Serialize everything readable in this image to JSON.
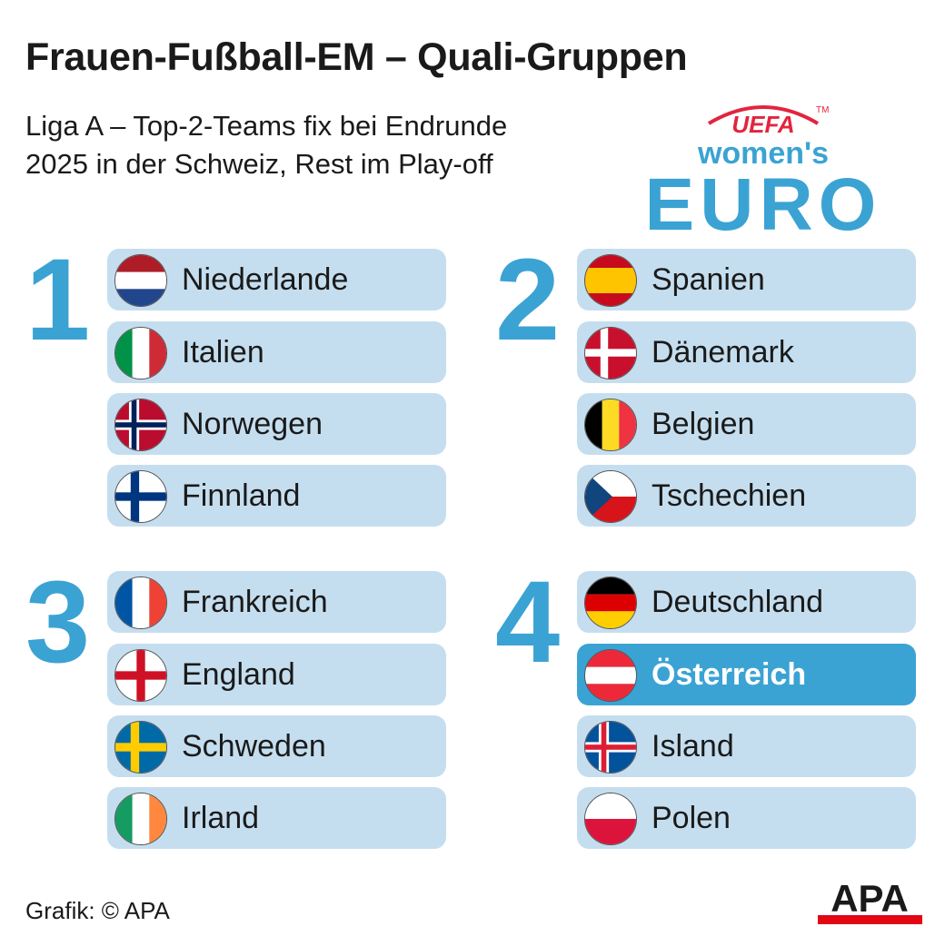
{
  "title": "Frauen-Fußball-EM – Quali-Gruppen",
  "subtitle_lines": [
    "Liga A – Top-2-Teams fix bei Endrunde",
    "2025 in der Schweiz, Rest im Play-off"
  ],
  "logo": {
    "uefa": "UEFA",
    "tm": "TM",
    "womens": "women's",
    "euro": "EURO"
  },
  "groups": [
    {
      "number": "1",
      "teams": [
        {
          "name": "Niederlande",
          "flag": "netherlands-flag-icon"
        },
        {
          "name": "Italien",
          "flag": "italy-flag-icon"
        },
        {
          "name": "Norwegen",
          "flag": "norway-flag-icon"
        },
        {
          "name": "Finnland",
          "flag": "finland-flag-icon"
        }
      ]
    },
    {
      "number": "2",
      "teams": [
        {
          "name": "Spanien",
          "flag": "spain-flag-icon"
        },
        {
          "name": "Dänemark",
          "flag": "denmark-flag-icon"
        },
        {
          "name": "Belgien",
          "flag": "belgium-flag-icon"
        },
        {
          "name": "Tschechien",
          "flag": "czech-flag-icon"
        }
      ]
    },
    {
      "number": "3",
      "teams": [
        {
          "name": "Frankreich",
          "flag": "france-flag-icon"
        },
        {
          "name": "England",
          "flag": "england-flag-icon"
        },
        {
          "name": "Schweden",
          "flag": "sweden-flag-icon"
        },
        {
          "name": "Irland",
          "flag": "ireland-flag-icon"
        }
      ]
    },
    {
      "number": "4",
      "teams": [
        {
          "name": "Deutschland",
          "flag": "germany-flag-icon"
        },
        {
          "name": "Österreich",
          "flag": "austria-flag-icon",
          "highlighted": true
        },
        {
          "name": "Island",
          "flag": "iceland-flag-icon"
        },
        {
          "name": "Polen",
          "flag": "poland-flag-icon"
        }
      ]
    }
  ],
  "colors": {
    "accent": "#3ba3d3",
    "row_bg": "#c5deef",
    "highlight_bg": "#3ba3d3",
    "uefa_red": "#e3243f",
    "apa_red": "#e30613"
  },
  "credit": "Grafik: © APA",
  "apa_logo": "APA"
}
